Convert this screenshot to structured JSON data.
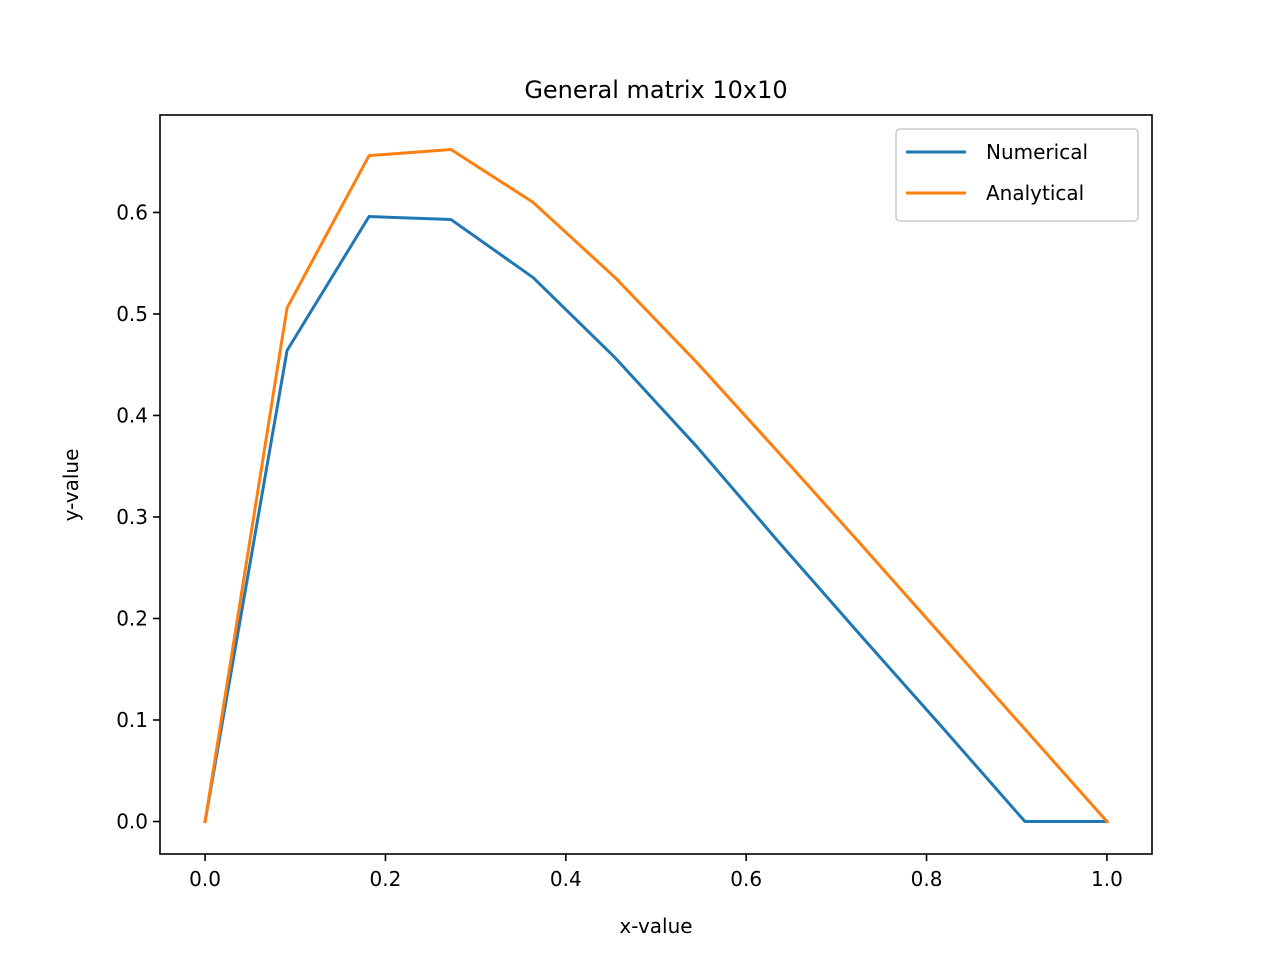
{
  "chart_data": {
    "type": "line",
    "title": "General matrix 10x10",
    "xlabel": "x-value",
    "ylabel": "y-value",
    "xlim": [
      -0.05,
      1.05
    ],
    "ylim": [
      -0.032,
      0.696
    ],
    "xticks": [
      0.0,
      0.2,
      0.4,
      0.6,
      0.8,
      1.0
    ],
    "xtick_labels": [
      "0.0",
      "0.2",
      "0.4",
      "0.6",
      "0.8",
      "1.0"
    ],
    "yticks": [
      0.0,
      0.1,
      0.2,
      0.3,
      0.4,
      0.5,
      0.6
    ],
    "ytick_labels": [
      "0.0",
      "0.1",
      "0.2",
      "0.3",
      "0.4",
      "0.5",
      "0.6"
    ],
    "grid": false,
    "legend_position": "upper-right",
    "series": [
      {
        "name": "Numerical",
        "color": "#1f77b4",
        "x": [
          0.0,
          0.0909,
          0.1818,
          0.2727,
          0.3636,
          0.4545,
          0.5455,
          0.6364,
          0.7273,
          0.8182,
          0.9091,
          1.0
        ],
        "y": [
          0.0,
          0.464,
          0.596,
          0.593,
          0.536,
          0.457,
          0.369,
          0.275,
          0.183,
          0.092,
          0.0,
          0.0
        ]
      },
      {
        "name": "Analytical",
        "color": "#ff7f0e",
        "x": [
          0.0,
          0.0909,
          0.1818,
          0.2727,
          0.3636,
          0.4545,
          0.5455,
          0.6364,
          0.7273,
          0.8182,
          0.9091,
          1.0
        ],
        "y": [
          0.0,
          0.506,
          0.656,
          0.662,
          0.61,
          0.536,
          0.452,
          0.363,
          0.273,
          0.182,
          0.091,
          0.0
        ]
      }
    ]
  }
}
